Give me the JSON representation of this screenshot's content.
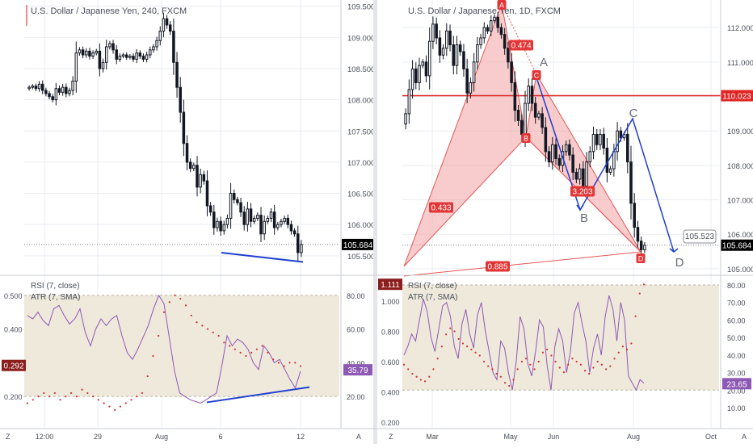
{
  "colors": {
    "candle": "#131722",
    "grid": "#e9ecf0",
    "axis_text": "#4a4e5a",
    "divider": "#c9ccd3",
    "rsi_line": "#8e59b5",
    "rsi_band": "#efe9dc",
    "atr_dots": "#d62d2d",
    "pattern_fill": "#f3a3a3",
    "pattern_line": "#e45757",
    "red_label": "#e23636",
    "blue": "#1f3fd0",
    "price_tag": "#000000",
    "rsi_tag": "#8e59b5",
    "atr_tag": "#8b1d1d",
    "hline": "#e02525"
  },
  "left_chart": {
    "title": "U.S. Dollar / Japanese Yen, 240, FXCM",
    "price_axis": [
      "109.500",
      "109.000",
      "108.500",
      "108.000",
      "107.500",
      "107.000",
      "106.500",
      "106.000",
      "105.500"
    ],
    "last_price": "105.684",
    "time_axis": [
      "12:00",
      "29",
      "Aug",
      "6",
      "12"
    ],
    "indicator": {
      "rsi_label": "RSI (7, close)",
      "atr_label": "ATR (7, SMA)",
      "rsi_axis": [
        "80.00",
        "60.00",
        "40.00",
        "20.00"
      ],
      "atr_axis": [
        "0.500",
        "0.400",
        "0.300",
        "0.200"
      ],
      "rsi_value": "35.79",
      "atr_value": "0.292"
    }
  },
  "right_chart": {
    "title": "U.S. Dollar / Japanese Yen, 1D, FXCM",
    "price_axis": [
      "112.000",
      "111.000",
      "110.000",
      "109.000",
      "108.000",
      "107.000",
      "106.000",
      "105.000"
    ],
    "last_price": "105.684",
    "hline_price": "110.023",
    "projection_label": "105.523",
    "time_axis": [
      "Mar",
      "May",
      "Jun",
      "Aug",
      "Oct"
    ],
    "points": {
      "A_top": "A",
      "A": "A",
      "B_red": "B",
      "C_red": "C",
      "B": "B",
      "C": "C",
      "D_red": "D",
      "D": "D"
    },
    "ratios": {
      "r1": "0.474",
      "r2": "0.433",
      "r3": "3.203",
      "r4": "0.885"
    },
    "indicator": {
      "rsi_label": "RSI (7, close)",
      "atr_label": "ATR (7, SMA)",
      "rsi_axis": [
        "80.00",
        "70.00",
        "60.00",
        "50.00",
        "40.00",
        "30.00",
        "20.00",
        "10.00"
      ],
      "atr_axis": [
        "1.000",
        "0.800",
        "0.600",
        "0.400",
        "0.200"
      ],
      "atr_value": "1.111",
      "rsi_value": "23.65"
    }
  },
  "footer": {
    "z_left": "Z",
    "a_left": "A",
    "z_right": "Z",
    "a_right": "A"
  },
  "chart_data": [
    {
      "type": "candlestick",
      "title": "U.S. Dollar / Japanese Yen, 240, FXCM",
      "timeframe": "240",
      "x_ticks": [
        "12:00",
        "29",
        "Aug",
        "6",
        "12"
      ],
      "ylim": [
        105.2,
        109.6
      ],
      "close": [
        108.2,
        108.22,
        108.18,
        108.25,
        108.15,
        108.1,
        108.05,
        108.0,
        108.18,
        108.12,
        108.2,
        108.1,
        108.15,
        108.3,
        108.75,
        108.8,
        108.72,
        108.78,
        108.7,
        108.75,
        108.78,
        108.5,
        108.6,
        108.85,
        108.9,
        108.8,
        108.65,
        108.7,
        108.72,
        108.68,
        108.7,
        108.65,
        108.75,
        108.7,
        108.65,
        108.72,
        108.8,
        108.85,
        108.95,
        109.1,
        109.3,
        109.2,
        109.1,
        108.6,
        108.2,
        107.8,
        107.3,
        107.0,
        106.9,
        106.95,
        106.6,
        106.8,
        106.7,
        106.3,
        106.2,
        105.95,
        106.05,
        105.9,
        106.0,
        106.1,
        106.5,
        106.4,
        106.35,
        106.2,
        106.0,
        106.25,
        106.05,
        106.1,
        106.15,
        105.85,
        106.05,
        106.1,
        106.2,
        105.95,
        106.0,
        106.05,
        106.1,
        106.0,
        105.9,
        105.85,
        105.55,
        105.68
      ],
      "trendline": {
        "from": 105.55,
        "to": 105.4
      }
    },
    {
      "type": "line",
      "title": "RSI (7, close) / ATR (7, SMA)",
      "series": [
        {
          "name": "RSI (7, close)",
          "values": [
            68,
            66,
            70,
            65,
            62,
            72,
            74,
            68,
            63,
            66,
            72,
            58,
            50,
            60,
            66,
            62,
            66,
            68,
            56,
            46,
            42,
            48,
            55,
            62,
            72,
            80,
            75,
            55,
            35,
            22,
            20,
            18,
            17,
            16,
            18,
            20,
            22,
            38,
            56,
            50,
            54,
            52,
            48,
            40,
            36,
            50,
            46,
            40,
            42,
            36,
            30,
            25,
            35
          ]
        },
        {
          "name": "ATR (7, SMA)",
          "values": [
            0.18,
            0.19,
            0.2,
            0.21,
            0.2,
            0.21,
            0.19,
            0.2,
            0.21,
            0.2,
            0.22,
            0.21,
            0.2,
            0.19,
            0.18,
            0.17,
            0.16,
            0.17,
            0.18,
            0.19,
            0.2,
            0.21,
            0.26,
            0.32,
            0.38,
            0.45,
            0.48,
            0.5,
            0.49,
            0.47,
            0.44,
            0.42,
            0.41,
            0.4,
            0.39,
            0.38,
            0.36,
            0.35,
            0.34,
            0.33,
            0.32,
            0.33,
            0.34,
            0.35,
            0.33,
            0.31,
            0.3,
            0.29,
            0.3,
            0.3,
            0.29
          ]
        }
      ],
      "rsi_axis": [
        "80.00",
        "60.00",
        "40.00",
        "20.00"
      ],
      "atr_axis": [
        "0.500",
        "0.400",
        "0.300",
        "0.200"
      ],
      "rsi_last": 35.79,
      "atr_last": 0.292
    },
    {
      "type": "candlestick",
      "title": "U.S. Dollar / Japanese Yen, 1D, FXCM",
      "timeframe": "1D",
      "x_ticks": [
        "Mar",
        "May",
        "Jun",
        "Aug",
        "Oct"
      ],
      "ylim": [
        104.6,
        112.8
      ],
      "close": [
        109.5,
        110.2,
        110.8,
        110.4,
        110.9,
        111.0,
        110.6,
        111.6,
        112.1,
        111.7,
        111.2,
        111.4,
        111.9,
        111.5,
        110.9,
        111.5,
        111.3,
        110.8,
        110.1,
        110.4,
        111.0,
        111.5,
        111.7,
        112.0,
        111.9,
        112.2,
        112.3,
        112.0,
        111.8,
        111.4,
        111.0,
        110.4,
        109.6,
        109.3,
        108.9,
        109.8,
        110.3,
        109.8,
        109.4,
        109.5,
        109.1,
        108.4,
        108.1,
        108.6,
        108.2,
        108.0,
        108.4,
        108.6,
        108.3,
        107.8,
        107.6,
        107.9,
        107.4,
        108.1,
        108.4,
        108.9,
        108.6,
        108.9,
        108.5,
        107.8,
        107.9,
        108.4,
        109.0,
        108.8,
        108.9,
        108.1,
        106.9,
        106.2,
        105.8,
        105.55,
        105.68
      ],
      "hline": 110.023,
      "pattern": {
        "A": 112.8,
        "B": 109.0,
        "C": 110.6,
        "D": 105.55
      },
      "ratios": [
        0.474,
        0.433,
        3.203,
        0.885
      ],
      "projection": {
        "A": 110.6,
        "B": 106.7,
        "C": 109.4,
        "D": 105.523
      }
    },
    {
      "type": "line",
      "title": "RSI (7, close) / ATR (7, SMA)",
      "series": [
        {
          "name": "RSI (7, close)",
          "values": [
            40,
            45,
            52,
            48,
            60,
            72,
            65,
            50,
            42,
            55,
            68,
            70,
            62,
            45,
            38,
            58,
            66,
            52,
            44,
            63,
            70,
            54,
            42,
            30,
            26,
            48,
            44,
            30,
            20,
            36,
            62,
            55,
            35,
            28,
            42,
            60,
            56,
            34,
            20,
            45,
            55,
            48,
            30,
            42,
            64,
            70,
            58,
            48,
            30,
            44,
            52,
            40,
            62,
            74,
            66,
            48,
            70,
            60,
            28,
            24,
            20,
            26,
            24
          ]
        },
        {
          "name": "ATR (7, SMA)",
          "values": [
            0.58,
            0.55,
            0.52,
            0.5,
            0.48,
            0.47,
            0.5,
            0.55,
            0.62,
            0.7,
            0.78,
            0.82,
            0.8,
            0.75,
            0.72,
            0.7,
            0.68,
            0.66,
            0.64,
            0.6,
            0.57,
            0.55,
            0.52,
            0.5,
            0.46,
            0.44,
            0.48,
            0.55,
            0.6,
            0.62,
            0.58,
            0.55,
            0.6,
            0.66,
            0.68,
            0.64,
            0.6,
            0.56,
            0.53,
            0.58,
            0.62,
            0.6,
            0.58,
            0.54,
            0.52,
            0.56,
            0.6,
            0.58,
            0.55,
            0.57,
            0.62,
            0.66,
            0.7,
            0.68,
            0.72,
            0.9,
            1.05,
            1.11
          ]
        }
      ],
      "rsi_axis": [
        "80.00",
        "70.00",
        "60.00",
        "50.00",
        "40.00",
        "30.00",
        "20.00",
        "10.00"
      ],
      "atr_axis": [
        "1.000",
        "0.800",
        "0.600",
        "0.400",
        "0.200"
      ],
      "rsi_last": 23.65,
      "atr_last": 1.111
    }
  ]
}
